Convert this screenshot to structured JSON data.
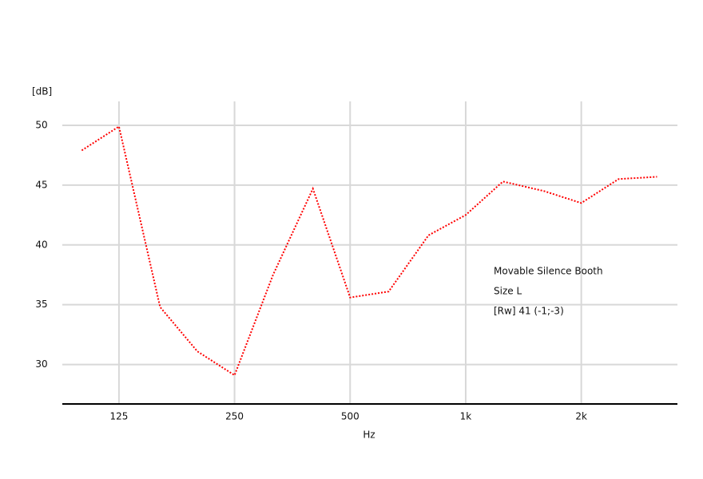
{
  "chart_data": {
    "type": "line",
    "y_label": "[dB]",
    "x_label": "Hz",
    "x": [
      100,
      125,
      160,
      200,
      250,
      315,
      400,
      500,
      630,
      800,
      1000,
      1250,
      1600,
      2000,
      2500,
      3150
    ],
    "series": [
      {
        "name": "Movable Silence Booth",
        "color": "#ff0000",
        "values": [
          47.9,
          49.9,
          34.8,
          31.1,
          29.1,
          37.5,
          44.7,
          35.6,
          36.1,
          40.8,
          42.5,
          45.3,
          44.5,
          43.5,
          45.5,
          45.7
        ]
      }
    ],
    "legend_lines": [
      "Size L",
      "[Rw] 41 (-1;-3)"
    ],
    "xscale": "log",
    "xlim": [
      89,
      3560
    ],
    "ylim": [
      26.7,
      52
    ],
    "xticks": [
      125,
      250,
      500,
      {
        "value": 1000,
        "label": "1k"
      },
      {
        "value": 2000,
        "label": "2k"
      }
    ],
    "yticks": [
      50,
      45,
      40,
      35,
      30
    ],
    "grid": true
  }
}
